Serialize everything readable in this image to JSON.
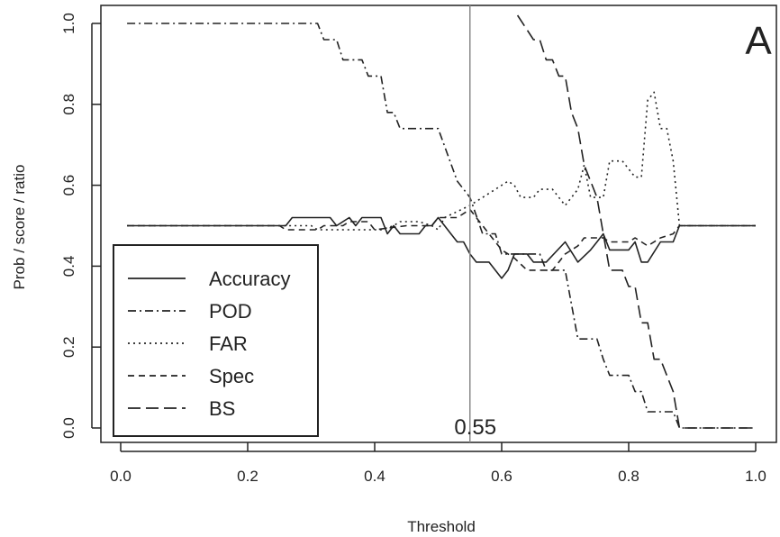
{
  "chart_data": {
    "type": "line",
    "xlabel": "Threshold",
    "ylabel": "Prob / score / ratio",
    "panel_label": "A",
    "xlim": [
      0,
      1
    ],
    "ylim": [
      0,
      1
    ],
    "x_ticks": [
      "0.0",
      "0.2",
      "0.4",
      "0.6",
      "0.8",
      "1.0"
    ],
    "y_ticks": [
      "0.0",
      "0.2",
      "0.4",
      "0.6",
      "0.8",
      "1.0"
    ],
    "vline": {
      "x": 0.55,
      "label": "0.55"
    },
    "legend": {
      "position": "bottom-left",
      "entries": [
        "Accuracy",
        "POD",
        "FAR",
        "Spec",
        "BS"
      ]
    },
    "series": [
      {
        "name": "Accuracy",
        "dash": "solid",
        "color": "#222222",
        "points": [
          [
            0.01,
            0.5
          ],
          [
            0.26,
            0.5
          ],
          [
            0.27,
            0.52
          ],
          [
            0.33,
            0.52
          ],
          [
            0.34,
            0.5
          ],
          [
            0.36,
            0.52
          ],
          [
            0.37,
            0.5
          ],
          [
            0.38,
            0.52
          ],
          [
            0.41,
            0.52
          ],
          [
            0.42,
            0.48
          ],
          [
            0.43,
            0.5
          ],
          [
            0.44,
            0.48
          ],
          [
            0.47,
            0.48
          ],
          [
            0.48,
            0.5
          ],
          [
            0.49,
            0.5
          ],
          [
            0.5,
            0.52
          ],
          [
            0.51,
            0.5
          ],
          [
            0.52,
            0.48
          ],
          [
            0.53,
            0.46
          ],
          [
            0.54,
            0.46
          ],
          [
            0.55,
            0.43
          ],
          [
            0.56,
            0.41
          ],
          [
            0.58,
            0.41
          ],
          [
            0.6,
            0.37
          ],
          [
            0.61,
            0.39
          ],
          [
            0.62,
            0.43
          ],
          [
            0.64,
            0.43
          ],
          [
            0.65,
            0.41
          ],
          [
            0.67,
            0.41
          ],
          [
            0.7,
            0.46
          ],
          [
            0.72,
            0.41
          ],
          [
            0.74,
            0.44
          ],
          [
            0.75,
            0.46
          ],
          [
            0.76,
            0.48
          ],
          [
            0.77,
            0.44
          ],
          [
            0.8,
            0.44
          ],
          [
            0.81,
            0.46
          ],
          [
            0.82,
            0.41
          ],
          [
            0.83,
            0.41
          ],
          [
            0.85,
            0.46
          ],
          [
            0.87,
            0.46
          ],
          [
            0.88,
            0.5
          ],
          [
            1.0,
            0.5
          ]
        ]
      },
      {
        "name": "POD",
        "dash": "dotdash",
        "color": "#222222",
        "points": [
          [
            0.01,
            1.0
          ],
          [
            0.31,
            1.0
          ],
          [
            0.32,
            0.96
          ],
          [
            0.34,
            0.96
          ],
          [
            0.35,
            0.91
          ],
          [
            0.38,
            0.91
          ],
          [
            0.39,
            0.87
          ],
          [
            0.41,
            0.87
          ],
          [
            0.42,
            0.78
          ],
          [
            0.43,
            0.78
          ],
          [
            0.44,
            0.74
          ],
          [
            0.5,
            0.74
          ],
          [
            0.53,
            0.61
          ],
          [
            0.55,
            0.57
          ],
          [
            0.57,
            0.48
          ],
          [
            0.59,
            0.48
          ],
          [
            0.6,
            0.43
          ],
          [
            0.66,
            0.43
          ],
          [
            0.67,
            0.39
          ],
          [
            0.7,
            0.39
          ],
          [
            0.72,
            0.22
          ],
          [
            0.75,
            0.22
          ],
          [
            0.76,
            0.17
          ],
          [
            0.77,
            0.13
          ],
          [
            0.8,
            0.13
          ],
          [
            0.81,
            0.09
          ],
          [
            0.82,
            0.09
          ],
          [
            0.83,
            0.04
          ],
          [
            0.87,
            0.04
          ],
          [
            0.88,
            0.0
          ],
          [
            1.0,
            0.0
          ]
        ]
      },
      {
        "name": "FAR",
        "dash": "dotted",
        "color": "#222222",
        "points": [
          [
            0.01,
            0.5
          ],
          [
            0.3,
            0.5
          ],
          [
            0.31,
            0.49
          ],
          [
            0.41,
            0.49
          ],
          [
            0.43,
            0.5
          ],
          [
            0.44,
            0.51
          ],
          [
            0.47,
            0.51
          ],
          [
            0.49,
            0.5
          ],
          [
            0.5,
            0.49
          ],
          [
            0.51,
            0.52
          ],
          [
            0.55,
            0.55
          ],
          [
            0.59,
            0.59
          ],
          [
            0.61,
            0.61
          ],
          [
            0.62,
            0.6
          ],
          [
            0.63,
            0.57
          ],
          [
            0.65,
            0.57
          ],
          [
            0.66,
            0.59
          ],
          [
            0.68,
            0.59
          ],
          [
            0.7,
            0.55
          ],
          [
            0.72,
            0.59
          ],
          [
            0.73,
            0.65
          ],
          [
            0.74,
            0.57
          ],
          [
            0.76,
            0.57
          ],
          [
            0.77,
            0.66
          ],
          [
            0.79,
            0.66
          ],
          [
            0.81,
            0.62
          ],
          [
            0.82,
            0.62
          ],
          [
            0.83,
            0.81
          ],
          [
            0.84,
            0.83
          ],
          [
            0.85,
            0.74
          ],
          [
            0.86,
            0.74
          ],
          [
            0.87,
            0.66
          ],
          [
            0.88,
            0.5
          ],
          [
            1.0,
            0.5
          ]
        ]
      },
      {
        "name": "Spec",
        "dash": "dashed",
        "color": "#222222",
        "points": [
          [
            0.01,
            0.5
          ],
          [
            0.25,
            0.5
          ],
          [
            0.26,
            0.49
          ],
          [
            0.31,
            0.49
          ],
          [
            0.32,
            0.5
          ],
          [
            0.35,
            0.5
          ],
          [
            0.36,
            0.51
          ],
          [
            0.39,
            0.51
          ],
          [
            0.4,
            0.49
          ],
          [
            0.45,
            0.5
          ],
          [
            0.49,
            0.5
          ],
          [
            0.5,
            0.52
          ],
          [
            0.53,
            0.52
          ],
          [
            0.55,
            0.54
          ],
          [
            0.58,
            0.48
          ],
          [
            0.6,
            0.44
          ],
          [
            0.62,
            0.42
          ],
          [
            0.64,
            0.39
          ],
          [
            0.67,
            0.39
          ],
          [
            0.68,
            0.39
          ],
          [
            0.7,
            0.43
          ],
          [
            0.72,
            0.45
          ],
          [
            0.73,
            0.47
          ],
          [
            0.75,
            0.47
          ],
          [
            0.76,
            0.47
          ],
          [
            0.77,
            0.46
          ],
          [
            0.8,
            0.46
          ],
          [
            0.81,
            0.47
          ],
          [
            0.83,
            0.45
          ],
          [
            0.85,
            0.47
          ],
          [
            0.87,
            0.48
          ],
          [
            0.88,
            0.5
          ],
          [
            1.0,
            0.5
          ]
        ]
      },
      {
        "name": "BS",
        "dash": "longdash",
        "color": "#222222",
        "points": [
          [
            0.625,
            1.02
          ],
          [
            0.65,
            0.96
          ],
          [
            0.66,
            0.96
          ],
          [
            0.67,
            0.91
          ],
          [
            0.68,
            0.91
          ],
          [
            0.69,
            0.87
          ],
          [
            0.7,
            0.87
          ],
          [
            0.71,
            0.78
          ],
          [
            0.72,
            0.74
          ],
          [
            0.73,
            0.65
          ],
          [
            0.74,
            0.61
          ],
          [
            0.75,
            0.57
          ],
          [
            0.76,
            0.48
          ],
          [
            0.77,
            0.39
          ],
          [
            0.79,
            0.39
          ],
          [
            0.8,
            0.35
          ],
          [
            0.81,
            0.35
          ],
          [
            0.82,
            0.26
          ],
          [
            0.83,
            0.26
          ],
          [
            0.84,
            0.17
          ],
          [
            0.85,
            0.17
          ],
          [
            0.86,
            0.13
          ],
          [
            0.87,
            0.09
          ],
          [
            0.88,
            0.0
          ],
          [
            1.0,
            0.0
          ]
        ]
      }
    ]
  }
}
